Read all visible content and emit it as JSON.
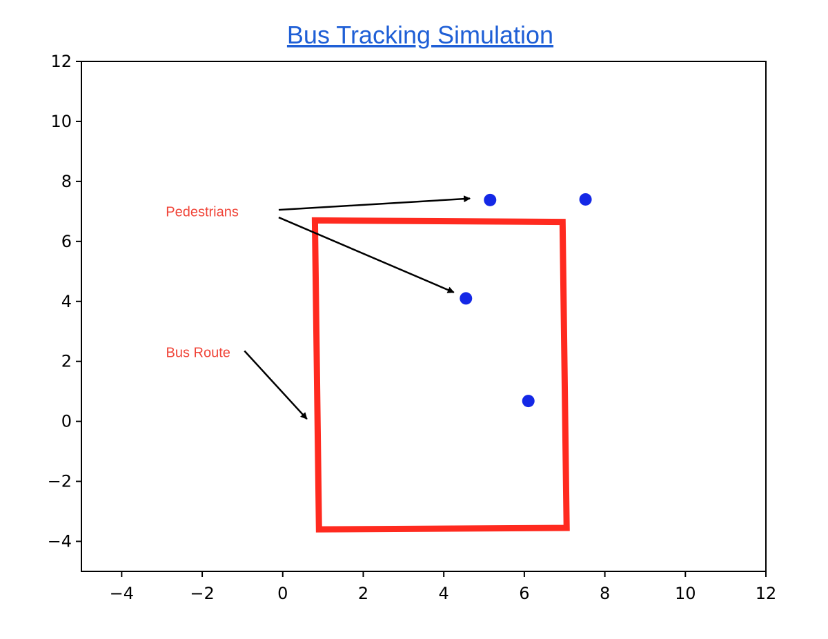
{
  "chart_data": {
    "type": "scatter",
    "title": "Bus Tracking Simulation",
    "xlabel": "",
    "ylabel": "",
    "xlim": [
      -5,
      12
    ],
    "ylim": [
      -5,
      12
    ],
    "xticks": [
      -4,
      -2,
      0,
      2,
      4,
      6,
      8,
      10,
      12
    ],
    "yticks": [
      -4,
      -2,
      0,
      2,
      4,
      6,
      8,
      10,
      12
    ],
    "grid": false,
    "series": [
      {
        "kind": "scatter",
        "color": "#1428e6",
        "points": [
          {
            "x": 5.15,
            "y": 7.38
          },
          {
            "x": 7.52,
            "y": 7.4
          },
          {
            "x": 4.55,
            "y": 4.1
          },
          {
            "x": 6.1,
            "y": 0.68
          }
        ]
      },
      {
        "kind": "line",
        "color": "#ff2a1f",
        "closed": true,
        "points": [
          {
            "x": 0.8,
            "y": 6.7
          },
          {
            "x": 6.95,
            "y": 6.65
          },
          {
            "x": 7.05,
            "y": -3.55
          },
          {
            "x": 0.9,
            "y": -3.6
          }
        ]
      }
    ],
    "annotations": [
      {
        "text": "Pedestrians",
        "color": "#f04438",
        "text_pos": {
          "x": -2.0,
          "y": 7.0
        },
        "arrows": [
          {
            "from": {
              "x": -0.1,
              "y": 7.05
            },
            "to": {
              "x": 4.65,
              "y": 7.43
            }
          },
          {
            "from": {
              "x": -0.1,
              "y": 6.8
            },
            "to": {
              "x": 4.25,
              "y": 4.3
            }
          }
        ]
      },
      {
        "text": "Bus Route",
        "color": "#f04438",
        "text_pos": {
          "x": -2.1,
          "y": 2.3
        },
        "arrows": [
          {
            "from": {
              "x": -0.95,
              "y": 2.35
            },
            "to": {
              "x": 0.6,
              "y": 0.08
            }
          }
        ]
      }
    ]
  }
}
